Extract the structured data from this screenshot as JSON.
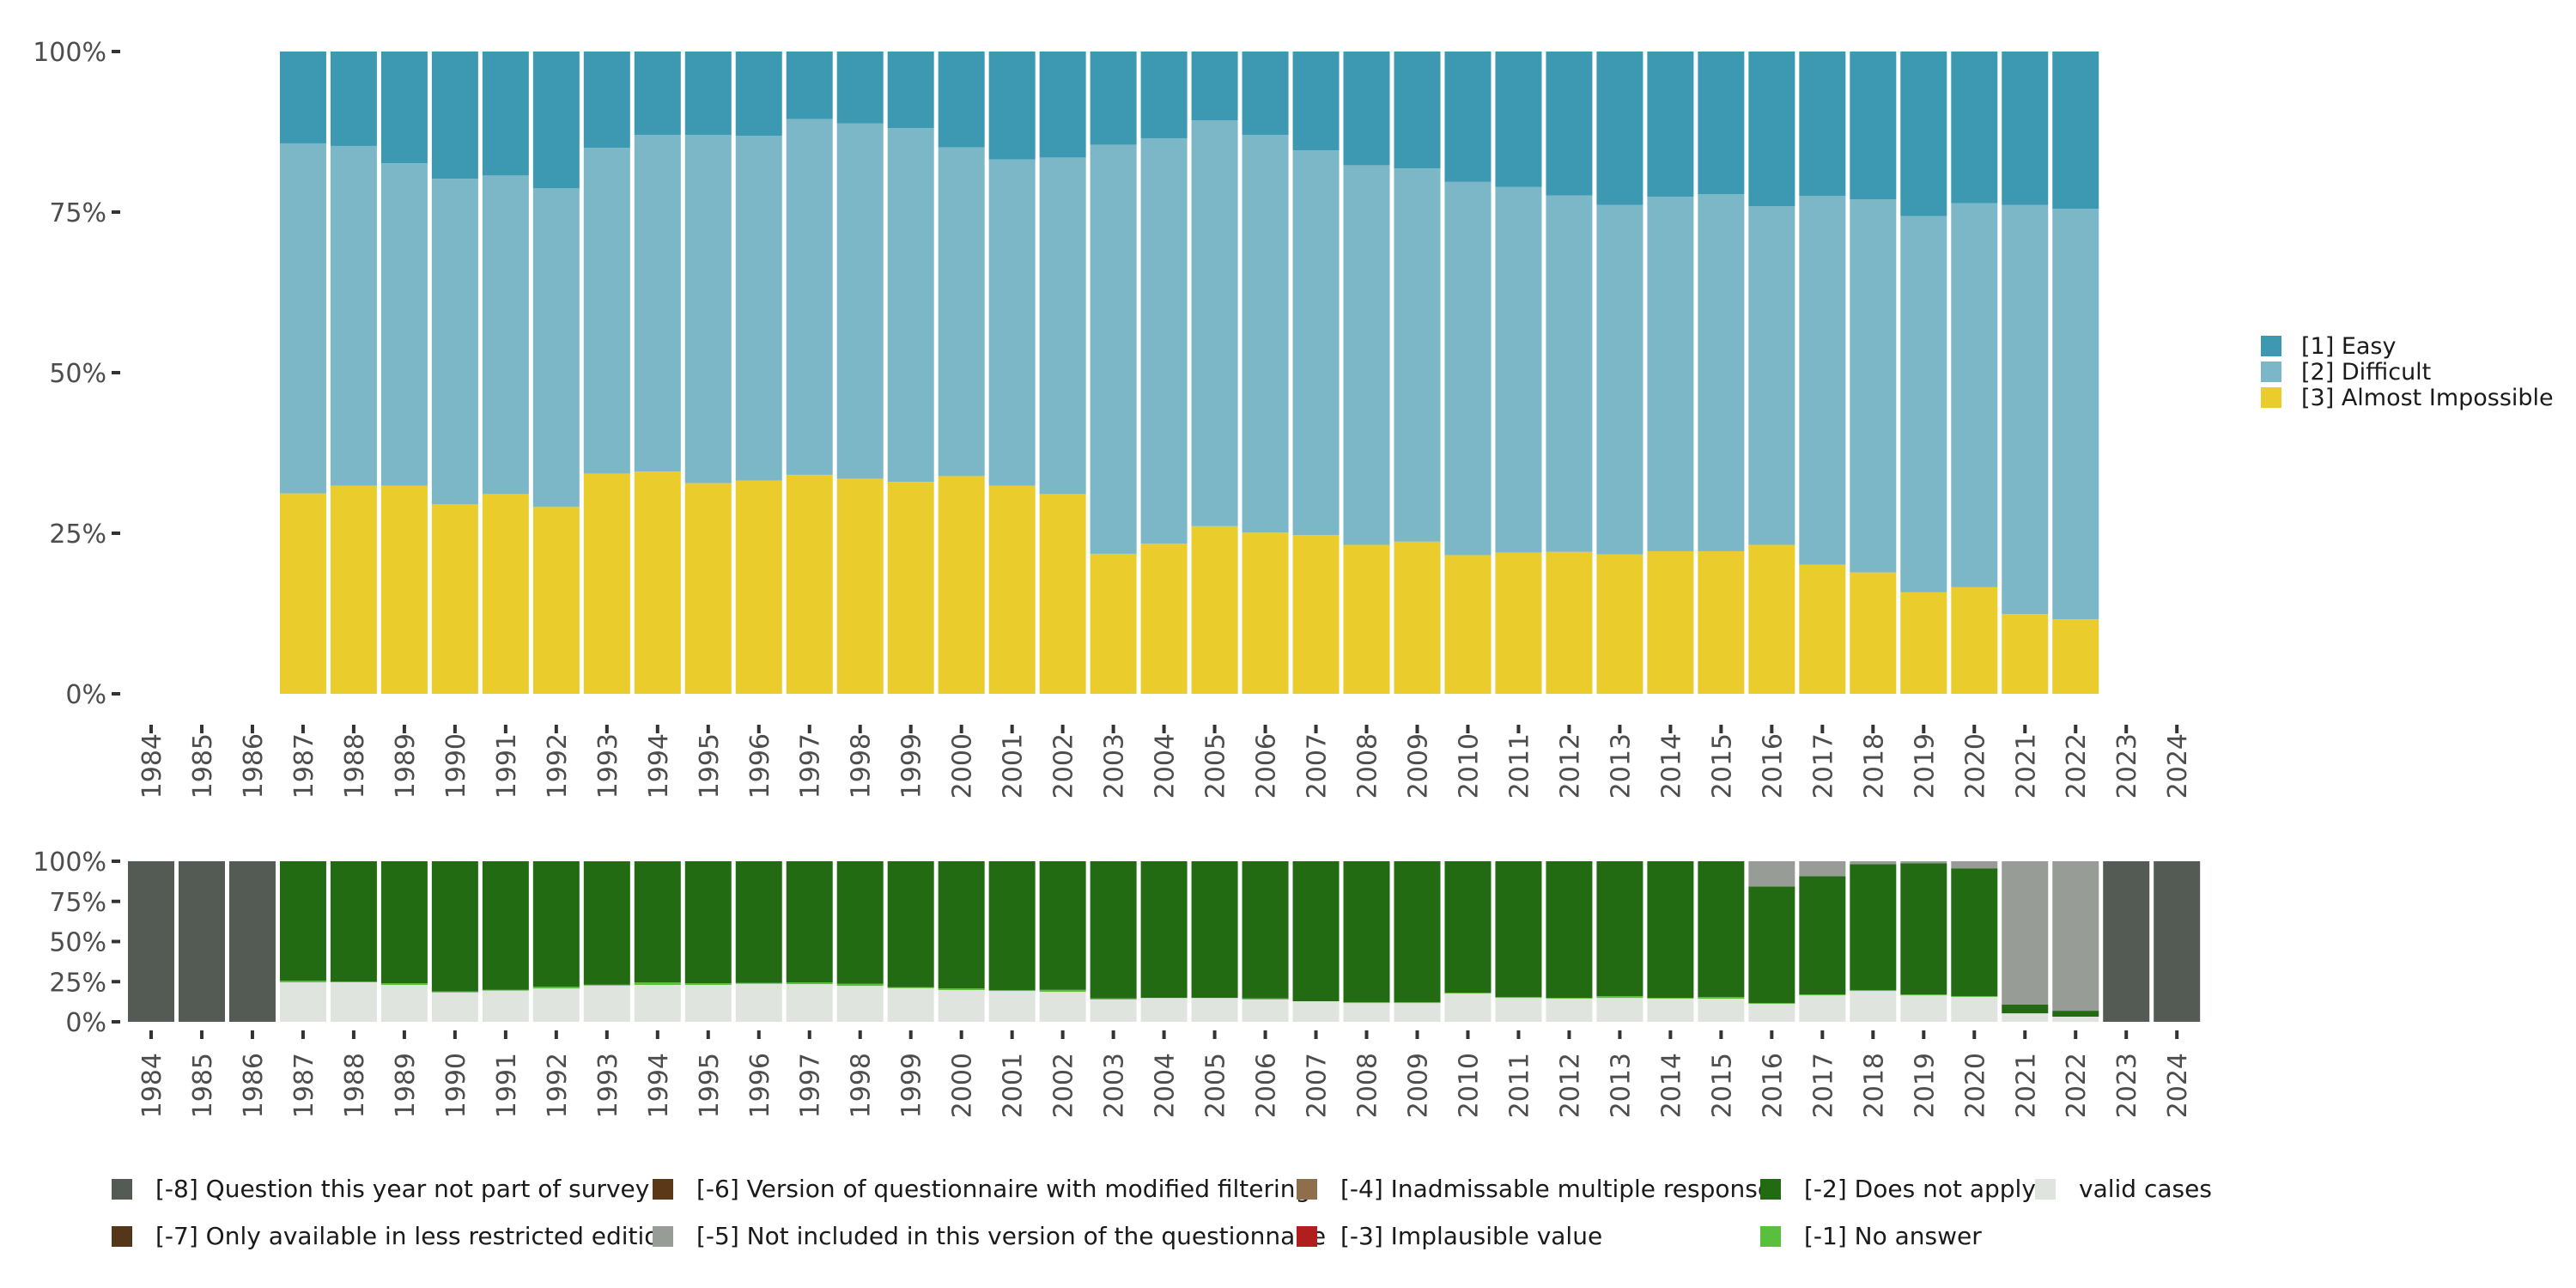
{
  "chart_data": [
    {
      "type": "bar",
      "stacked": true,
      "normalized": true,
      "title": "",
      "xlabel": "",
      "ylabel": "",
      "ylim": [
        0,
        100
      ],
      "y_ticks": [
        "0%",
        "25%",
        "50%",
        "75%",
        "100%"
      ],
      "categories": [
        "1984",
        "1985",
        "1986",
        "1987",
        "1988",
        "1989",
        "1990",
        "1991",
        "1992",
        "1993",
        "1994",
        "1995",
        "1996",
        "1997",
        "1998",
        "1999",
        "2000",
        "2001",
        "2002",
        "2003",
        "2004",
        "2005",
        "2006",
        "2007",
        "2008",
        "2009",
        "2010",
        "2011",
        "2012",
        "2013",
        "2014",
        "2015",
        "2016",
        "2017",
        "2018",
        "2019",
        "2020",
        "2021",
        "2022",
        "2023",
        "2024"
      ],
      "legend_position": "right",
      "series": [
        {
          "name": "[3] Almost Impossible",
          "color": "#eacd2c",
          "values": [
            null,
            null,
            null,
            31.2,
            32.4,
            32.4,
            29.5,
            31.1,
            29.1,
            34.3,
            34.6,
            32.8,
            33.2,
            34.1,
            33.5,
            33.0,
            33.9,
            32.4,
            31.1,
            21.8,
            23.4,
            26.1,
            25.1,
            24.7,
            23.2,
            23.7,
            21.6,
            22.0,
            22.1,
            21.7,
            22.2,
            22.2,
            23.2,
            20.1,
            18.9,
            15.8,
            16.6,
            12.4,
            11.6,
            null,
            null
          ]
        },
        {
          "name": "[2] Difficult",
          "color": "#7bb7c6",
          "values": [
            null,
            null,
            null,
            54.5,
            52.9,
            50.2,
            50.7,
            49.6,
            49.6,
            50.7,
            52.4,
            54.2,
            53.7,
            55.4,
            55.3,
            55.1,
            51.2,
            50.8,
            52.4,
            63.7,
            63.1,
            63.2,
            61.9,
            59.9,
            59.1,
            58.1,
            58.1,
            56.9,
            55.5,
            54.4,
            55.2,
            55.6,
            52.7,
            57.4,
            58.1,
            58.6,
            59.8,
            63.7,
            63.9,
            null,
            null
          ]
        },
        {
          "name": "[1] Easy",
          "color": "#3d99b2",
          "values": [
            null,
            null,
            null,
            14.3,
            14.7,
            17.4,
            19.8,
            19.3,
            21.3,
            15.0,
            13.0,
            13.0,
            13.1,
            10.5,
            11.2,
            11.9,
            14.9,
            16.8,
            16.5,
            14.5,
            13.5,
            10.7,
            13.0,
            15.4,
            17.7,
            18.2,
            20.3,
            21.1,
            22.4,
            23.9,
            22.6,
            22.2,
            24.1,
            22.5,
            23.0,
            25.6,
            23.6,
            23.9,
            24.5,
            null,
            null
          ]
        }
      ]
    },
    {
      "type": "bar",
      "stacked": true,
      "normalized": true,
      "title": "",
      "xlabel": "",
      "ylabel": "",
      "ylim": [
        0,
        100
      ],
      "y_ticks": [
        "0%",
        "25%",
        "50%",
        "75%",
        "100%"
      ],
      "categories": [
        "1984",
        "1985",
        "1986",
        "1987",
        "1988",
        "1989",
        "1990",
        "1991",
        "1992",
        "1993",
        "1994",
        "1995",
        "1996",
        "1997",
        "1998",
        "1999",
        "2000",
        "2001",
        "2002",
        "2003",
        "2004",
        "2005",
        "2006",
        "2007",
        "2008",
        "2009",
        "2010",
        "2011",
        "2012",
        "2013",
        "2014",
        "2015",
        "2016",
        "2017",
        "2018",
        "2019",
        "2020",
        "2021",
        "2022",
        "2023",
        "2024"
      ],
      "legend_position": "bottom",
      "series": [
        {
          "name": "valid cases",
          "color": "#e0e4df",
          "values": [
            0,
            0,
            0,
            24.6,
            24.6,
            23.0,
            18.3,
            19.4,
            20.8,
            22.6,
            23.0,
            23.0,
            23.7,
            23.5,
            22.4,
            21.0,
            19.8,
            19.2,
            18.7,
            13.9,
            14.9,
            14.9,
            13.9,
            12.8,
            11.7,
            11.7,
            17.6,
            14.9,
            14.4,
            14.9,
            14.4,
            14.4,
            11.2,
            16.5,
            19.2,
            16.5,
            15.5,
            5.3,
            3.2,
            0,
            0
          ]
        },
        {
          "name": "[-1] No answer",
          "color": "#5bbf3e",
          "values": [
            0,
            0,
            0,
            1.0,
            0.5,
            1.0,
            0.6,
            0.5,
            1.1,
            0.5,
            1.6,
            1.0,
            0.5,
            1.1,
            1.3,
            0.5,
            1.0,
            0.6,
            1.2,
            0.7,
            0,
            0,
            0.7,
            0,
            0.6,
            0.6,
            0.5,
            0.6,
            0.5,
            1.1,
            0.5,
            1.1,
            0.5,
            0.6,
            0.6,
            0.6,
            0.5,
            0,
            0,
            0,
            0
          ]
        },
        {
          "name": "[-2] Does not apply",
          "color": "#236b12",
          "values": [
            0,
            0,
            0,
            74.4,
            74.9,
            76.0,
            81.1,
            80.1,
            78.1,
            76.6,
            75.1,
            76.0,
            75.8,
            75.4,
            76.3,
            78.5,
            79.2,
            80.2,
            80.1,
            85.4,
            85.1,
            85.1,
            85.4,
            87.2,
            87.7,
            87.7,
            81.9,
            84.5,
            85.1,
            84.0,
            85.1,
            84.5,
            72.6,
            73.6,
            78.4,
            81.7,
            79.6,
            5.4,
            3.7,
            0,
            0
          ]
        },
        {
          "name": "[-3] Implausible value",
          "color": "#b01e1e",
          "values": [
            0,
            0,
            0,
            0,
            0,
            0,
            0,
            0,
            0,
            0.3,
            0.3,
            0,
            0,
            0,
            0,
            0,
            0,
            0,
            0,
            0,
            0,
            0,
            0,
            0,
            0,
            0,
            0,
            0,
            0,
            0,
            0,
            0,
            0,
            0,
            0,
            0,
            0,
            0,
            0,
            0,
            0
          ]
        },
        {
          "name": "[-5] Not included in this version of the questionnaire",
          "color": "#989c96",
          "values": [
            0,
            0,
            0,
            0,
            0,
            0,
            0,
            0,
            0,
            0,
            0,
            0,
            0,
            0,
            0,
            0,
            0,
            0,
            0,
            0,
            0,
            0,
            0,
            0,
            0,
            0,
            0,
            0,
            0,
            0,
            0,
            0,
            15.7,
            9.3,
            1.8,
            1.2,
            4.4,
            89.3,
            93.1,
            0,
            0
          ]
        },
        {
          "name": "[-8] Question this year not part of survey",
          "color": "#545b55",
          "values": [
            100,
            100,
            100,
            0,
            0,
            0,
            0,
            0,
            0,
            0,
            0,
            0,
            0,
            0,
            0,
            0,
            0,
            0,
            0,
            0,
            0,
            0,
            0,
            0,
            0,
            0,
            0,
            0,
            0,
            0,
            0,
            0,
            0,
            0,
            0,
            0,
            0,
            0,
            0,
            100,
            100
          ]
        }
      ]
    }
  ],
  "top_legend": [
    {
      "label": "[1] Easy",
      "color": "#3d99b2"
    },
    {
      "label": "[2] Difficult",
      "color": "#7bb7c6"
    },
    {
      "label": "[3] Almost Impossible",
      "color": "#eacd2c"
    }
  ],
  "bottom_legend": [
    {
      "label": "[-8] Question this year not part of survey",
      "color": "#545b55"
    },
    {
      "label": "[-7] Only available in less restricted edition",
      "color": "#533718"
    },
    {
      "label": "[-6] Version of questionnaire with modified filtering",
      "color": "#5a3818"
    },
    {
      "label": "[-5] Not included in this version of the questionnaire",
      "color": "#989c96"
    },
    {
      "label": "[-4] Inadmissable multiple response",
      "color": "#8f6e4c"
    },
    {
      "label": "[-3] Implausible value",
      "color": "#b01e1e"
    },
    {
      "label": "[-2] Does not apply",
      "color": "#236b12"
    },
    {
      "label": "[-1] No answer",
      "color": "#5bbf3e"
    },
    {
      "label": "valid cases",
      "color": "#e0e4df"
    }
  ]
}
